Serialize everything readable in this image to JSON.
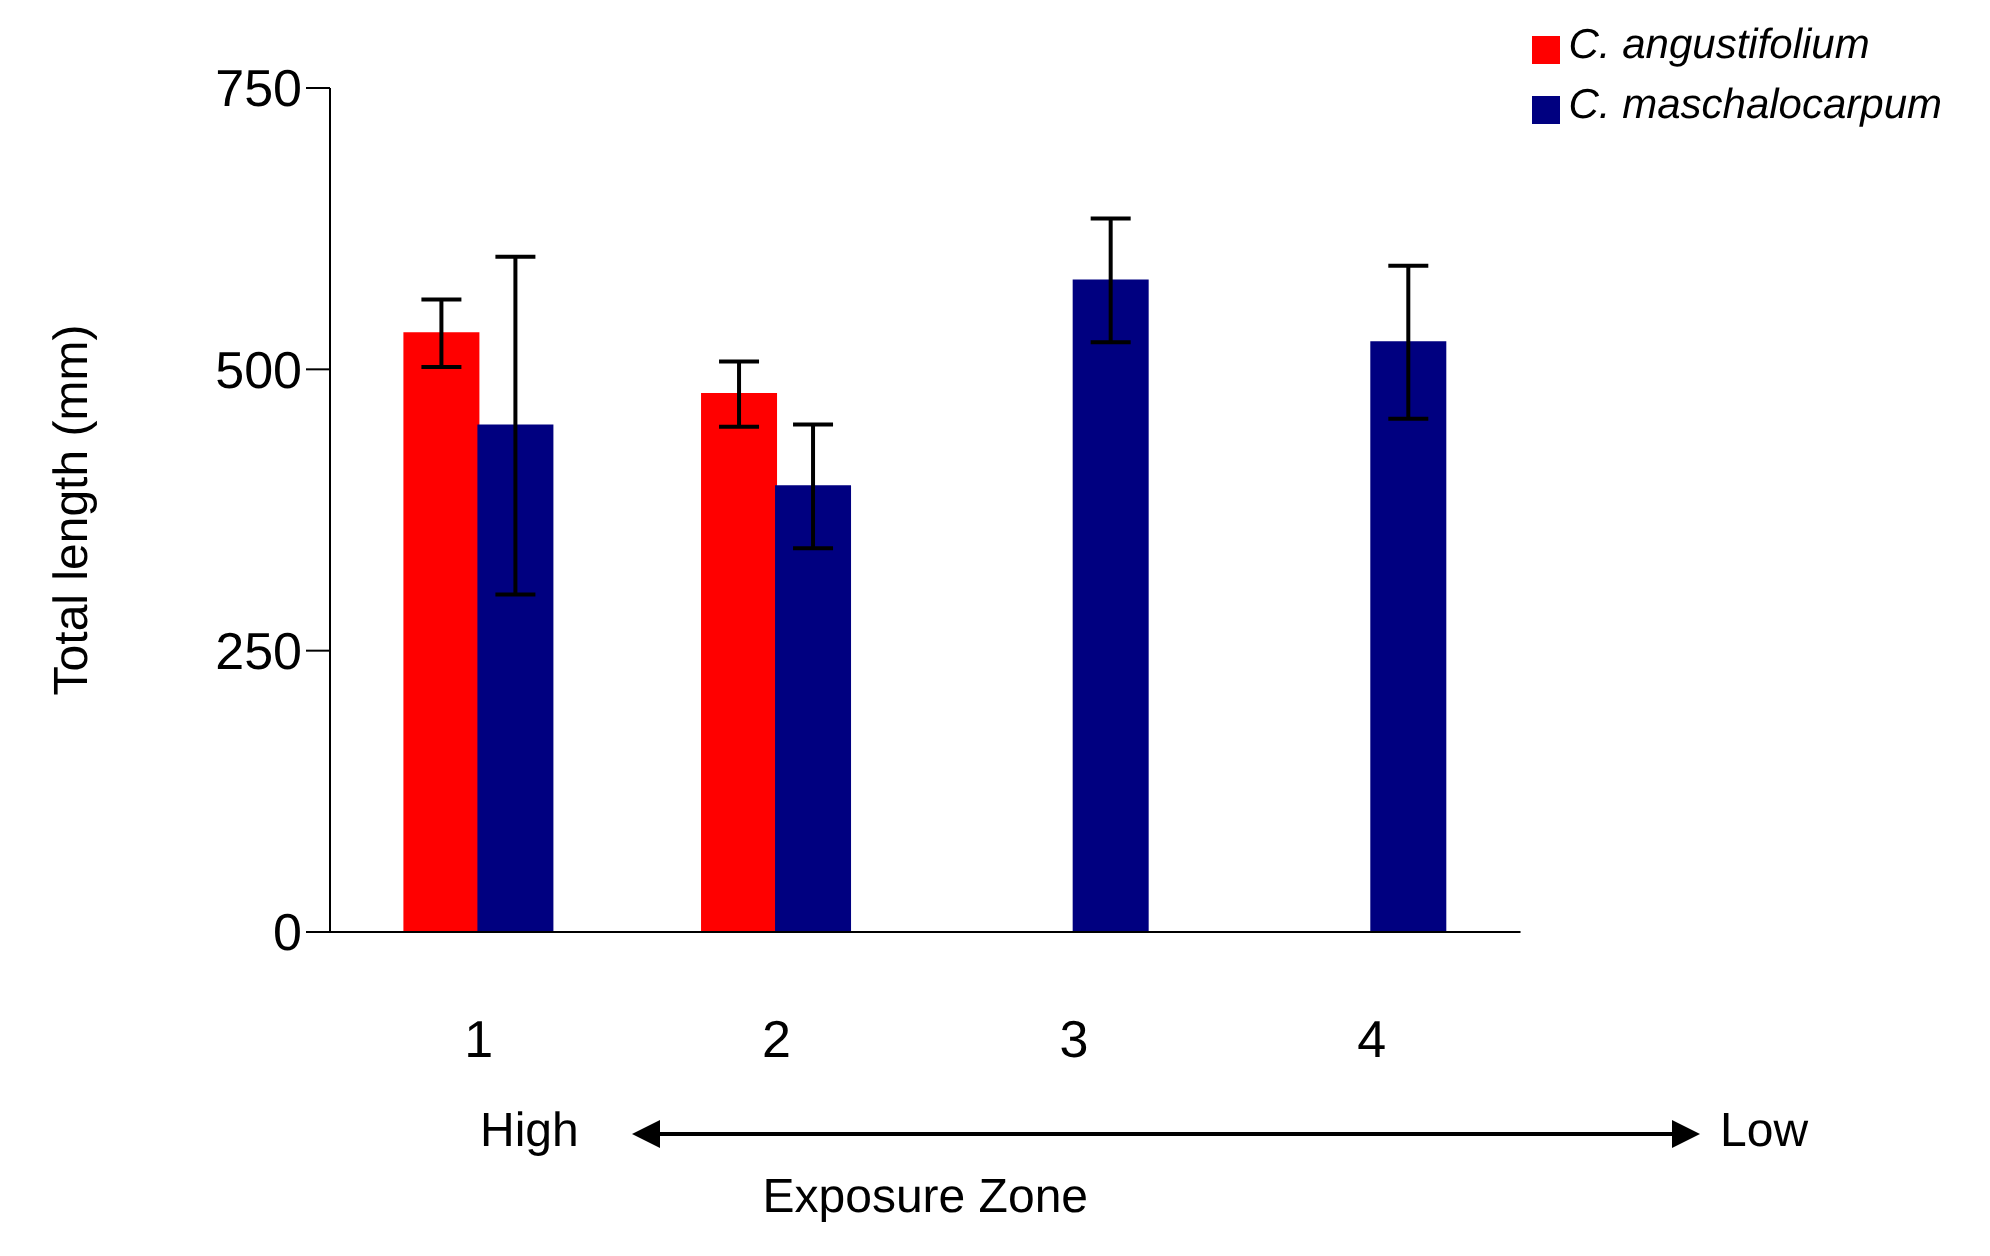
{
  "chart_data": {
    "type": "bar",
    "xlabel": "Exposure Zone",
    "ylabel": "Total length (mm)",
    "categories": [
      "1",
      "2",
      "3",
      "4"
    ],
    "series": [
      {
        "name": "C. angustifolium",
        "color": "#ff0000",
        "values": [
          532,
          478,
          null,
          null
        ],
        "errors": [
          30,
          29,
          null,
          null
        ]
      },
      {
        "name": "C. maschalocarpum",
        "color": "#000080",
        "values": [
          450,
          396,
          579,
          524
        ],
        "errors": [
          150,
          55,
          55,
          68
        ]
      }
    ],
    "ylim": [
      0,
      750
    ],
    "yticks": [
      0,
      250,
      500,
      750
    ],
    "grid": false,
    "legend": "top right",
    "annotations": [
      "High",
      "Low"
    ]
  }
}
